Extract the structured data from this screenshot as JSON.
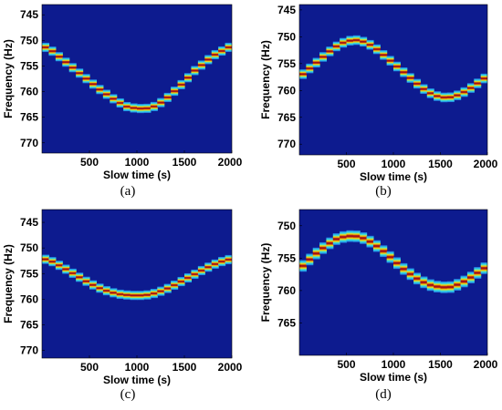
{
  "captions": [
    "(a)",
    "(b)",
    "(c)",
    "(d)"
  ],
  "colors": {
    "background": "#0d1b8f",
    "track_core": "#a50f15",
    "track_edge": "#ffd400"
  },
  "chart_data": [
    {
      "type": "heatmap",
      "title": "",
      "xlabel": "Slow time (s)",
      "ylabel": "Frequency (Hz)",
      "xlim": [
        0,
        2000
      ],
      "ylim": [
        772,
        743
      ],
      "xticks": [
        500,
        1000,
        1500,
        2000
      ],
      "yticks": [
        745,
        750,
        755,
        760,
        765,
        770
      ],
      "track": {
        "x": [
          0,
          100,
          200,
          300,
          400,
          500,
          600,
          700,
          800,
          900,
          1000,
          1100,
          1200,
          1300,
          1400,
          1500,
          1600,
          1700,
          1800,
          1900,
          2000
        ],
        "y": [
          751,
          752,
          753.5,
          755,
          756.5,
          758,
          759.5,
          760.8,
          762,
          763,
          763.3,
          763.3,
          762.8,
          761.5,
          759.8,
          758,
          756,
          754.5,
          753,
          752,
          751
        ]
      }
    },
    {
      "type": "heatmap",
      "title": "",
      "xlabel": "Slow time (s)",
      "ylabel": "Frequency (Hz)",
      "xlim": [
        0,
        2000
      ],
      "ylim": [
        772,
        744
      ],
      "xticks": [
        500,
        1000,
        1500,
        2000
      ],
      "yticks": [
        745,
        750,
        755,
        760,
        765,
        770
      ],
      "track": {
        "x": [
          0,
          100,
          200,
          300,
          400,
          500,
          600,
          700,
          800,
          900,
          1000,
          1100,
          1200,
          1300,
          1400,
          1500,
          1600,
          1700,
          1800,
          1900,
          2000
        ],
        "y": [
          757.5,
          756,
          754.5,
          753,
          751.7,
          750.8,
          750.6,
          751,
          752,
          753.5,
          755,
          756.5,
          758,
          759.5,
          760.6,
          761.3,
          761.3,
          760.8,
          759.8,
          758.6,
          757.3
        ]
      }
    },
    {
      "type": "heatmap",
      "title": "",
      "xlabel": "Slow time (s)",
      "ylabel": "Frequency (Hz)",
      "xlim": [
        0,
        2000
      ],
      "ylim": [
        771.5,
        742.5
      ],
      "xticks": [
        500,
        1000,
        1500,
        2000
      ],
      "yticks": [
        745,
        750,
        755,
        760,
        765,
        770
      ],
      "track": {
        "x": [
          0,
          100,
          200,
          300,
          400,
          500,
          600,
          700,
          800,
          900,
          1000,
          1100,
          1200,
          1300,
          1400,
          1500,
          1600,
          1700,
          1800,
          1900,
          2000
        ],
        "y": [
          752,
          752.6,
          753.6,
          754.7,
          755.8,
          756.9,
          757.8,
          758.5,
          759,
          759.2,
          759.3,
          759.2,
          758.8,
          758.1,
          757.2,
          756.2,
          755.2,
          754.2,
          753.3,
          752.6,
          752.1
        ]
      }
    },
    {
      "type": "heatmap",
      "title": "",
      "xlabel": "Slow time (s)",
      "ylabel": "Frequency (Hz)",
      "xlim": [
        0,
        2000
      ],
      "ylim": [
        770,
        747.5
      ],
      "xticks": [
        500,
        1000,
        1500,
        2000
      ],
      "yticks": [
        750,
        755,
        760,
        765
      ],
      "track": {
        "x": [
          0,
          100,
          200,
          300,
          400,
          500,
          600,
          700,
          800,
          900,
          1000,
          1100,
          1200,
          1300,
          1400,
          1500,
          1600,
          1700,
          1800,
          1900,
          2000
        ],
        "y": [
          756.7,
          755.3,
          754,
          752.9,
          752,
          751.6,
          751.6,
          752,
          752.9,
          754,
          755.3,
          756.6,
          757.7,
          758.6,
          759.2,
          759.5,
          759.5,
          759,
          758.2,
          757.2,
          756.2
        ]
      }
    }
  ]
}
